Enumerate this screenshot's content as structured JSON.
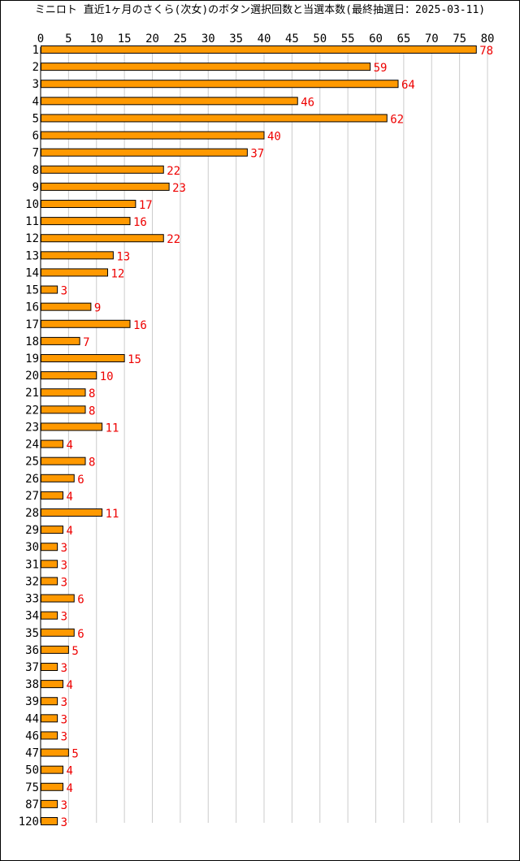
{
  "page": {
    "title": "ミニロト 直近1ヶ月のさくら(次女)のボタン選択回数と当選本数(最終抽選日：2025-03-11)"
  },
  "colors": {
    "bar_fill": "#ff9900",
    "bar_stroke": "#000000",
    "label": "#ee0000",
    "grid": "#cccccc",
    "axis": "#000000"
  },
  "chart_data": {
    "type": "bar",
    "orientation": "horizontal",
    "title": "ミニロト 直近1ヶ月のさくら(次女)のボタン選択回数と当選本数(最終抽選日：2025-03-11)",
    "xlabel": "",
    "ylabel": "",
    "xlim": [
      0,
      80
    ],
    "x_ticks": [
      "0",
      "5",
      "10",
      "15",
      "20",
      "25",
      "30",
      "35",
      "40",
      "45",
      "50",
      "55",
      "60",
      "65",
      "70",
      "75",
      "80"
    ],
    "grid": true,
    "legend": "none",
    "categories": [
      "1",
      "2",
      "3",
      "4",
      "5",
      "6",
      "7",
      "8",
      "9",
      "10",
      "11",
      "12",
      "13",
      "14",
      "15",
      "16",
      "17",
      "18",
      "19",
      "20",
      "21",
      "22",
      "23",
      "24",
      "25",
      "26",
      "27",
      "28",
      "29",
      "30",
      "31",
      "32",
      "33",
      "34",
      "35",
      "36",
      "37",
      "38",
      "39",
      "44",
      "46",
      "47",
      "50",
      "75",
      "87",
      "120"
    ],
    "values": [
      78,
      59,
      64,
      46,
      62,
      40,
      37,
      22,
      23,
      17,
      16,
      22,
      13,
      12,
      3,
      9,
      16,
      7,
      15,
      10,
      8,
      8,
      11,
      4,
      8,
      6,
      4,
      11,
      4,
      3,
      3,
      3,
      6,
      3,
      6,
      5,
      3,
      4,
      3,
      3,
      3,
      5,
      4,
      4,
      3,
      3
    ]
  }
}
